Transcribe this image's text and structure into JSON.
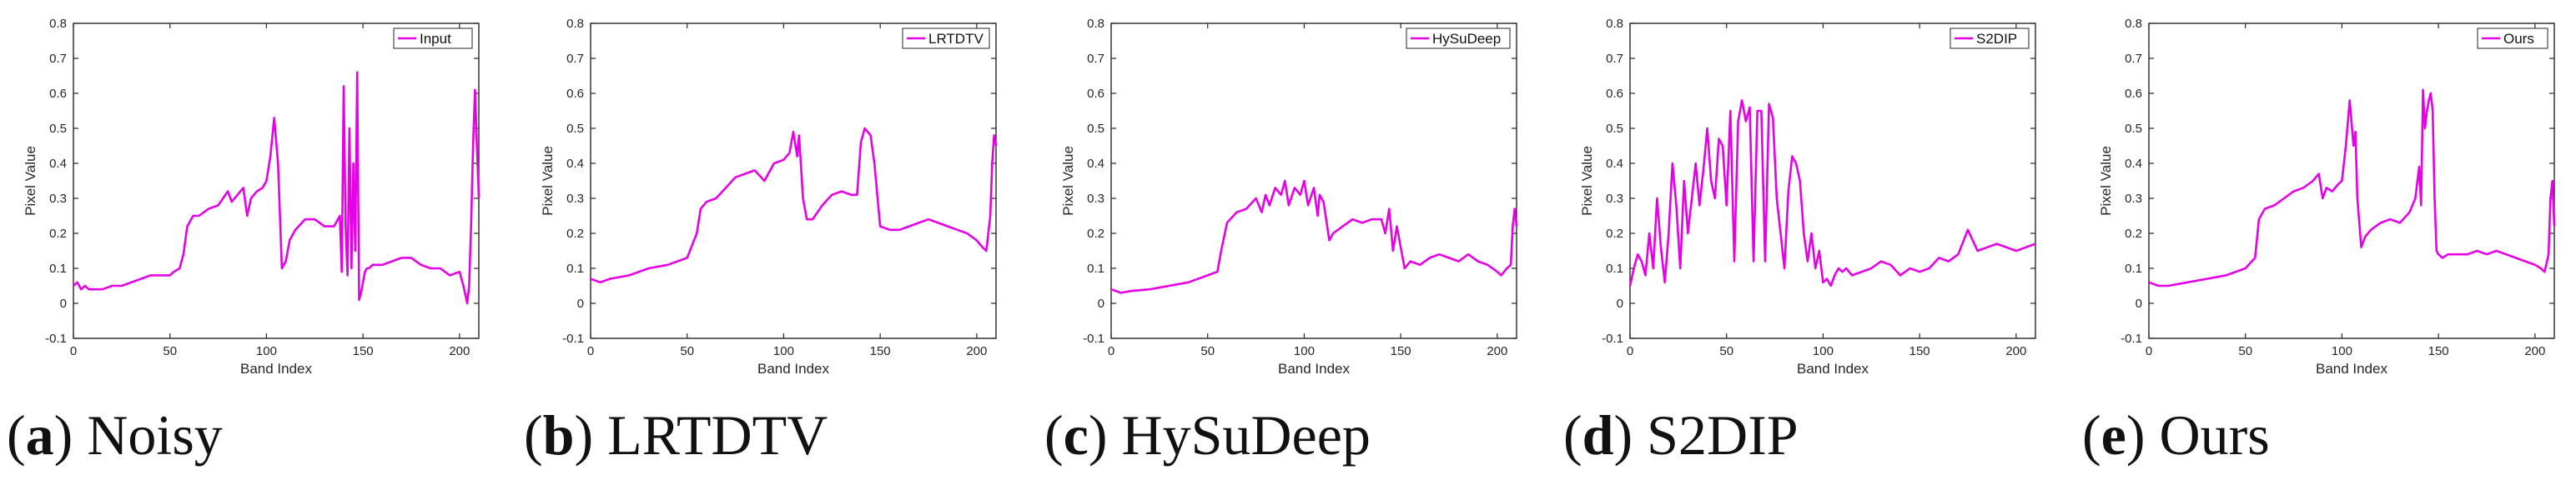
{
  "panels": [
    {
      "letter": "a",
      "name": "Noisy",
      "chart_data": {
        "type": "line",
        "xlabel": "Band Index",
        "ylabel": "Pixel Value",
        "xlim": [
          0,
          210
        ],
        "ylim": [
          -0.1,
          0.8
        ],
        "xticks": [
          "0",
          "50",
          "100",
          "150",
          "200"
        ],
        "yticks": [
          "-0.1",
          "0",
          "0.1",
          "0.2",
          "0.3",
          "0.4",
          "0.5",
          "0.6",
          "0.7",
          "0.8"
        ],
        "legend": "top-right",
        "color": "#e600e6",
        "series": [
          {
            "name": "Input",
            "x": [
              0,
              2,
              4,
              6,
              8,
              10,
              15,
              20,
              25,
              30,
              35,
              40,
              45,
              50,
              52,
              55,
              57,
              59,
              62,
              65,
              70,
              75,
              80,
              82,
              85,
              88,
              90,
              92,
              95,
              98,
              100,
              102,
              104,
              106,
              108,
              110,
              112,
              115,
              120,
              125,
              130,
              135,
              138,
              139,
              140,
              141,
              142,
              143,
              144,
              145,
              146,
              147,
              148,
              149,
              150,
              151,
              152,
              153,
              155,
              160,
              165,
              170,
              175,
              180,
              185,
              190,
              195,
              200,
              202,
              204,
              205,
              206,
              207,
              208,
              209,
              210
            ],
            "y": [
              0.05,
              0.06,
              0.04,
              0.05,
              0.04,
              0.04,
              0.04,
              0.05,
              0.05,
              0.06,
              0.07,
              0.08,
              0.08,
              0.08,
              0.09,
              0.1,
              0.14,
              0.22,
              0.25,
              0.25,
              0.27,
              0.28,
              0.32,
              0.29,
              0.31,
              0.33,
              0.25,
              0.3,
              0.32,
              0.33,
              0.35,
              0.42,
              0.53,
              0.4,
              0.1,
              0.12,
              0.18,
              0.21,
              0.24,
              0.24,
              0.22,
              0.22,
              0.25,
              0.09,
              0.62,
              0.22,
              0.08,
              0.5,
              0.1,
              0.4,
              0.15,
              0.66,
              0.01,
              0.03,
              0.06,
              0.09,
              0.1,
              0.1,
              0.11,
              0.11,
              0.12,
              0.13,
              0.13,
              0.11,
              0.1,
              0.1,
              0.08,
              0.09,
              0.05,
              0.0,
              0.05,
              0.22,
              0.45,
              0.61,
              0.45,
              0.3
            ]
          }
        ]
      }
    },
    {
      "letter": "b",
      "name": "LRTDTV",
      "chart_data": {
        "type": "line",
        "xlabel": "Band Index",
        "ylabel": "Pixel Value",
        "xlim": [
          0,
          210
        ],
        "ylim": [
          -0.1,
          0.8
        ],
        "xticks": [
          "0",
          "50",
          "100",
          "150",
          "200"
        ],
        "yticks": [
          "-0.1",
          "0",
          "0.1",
          "0.2",
          "0.3",
          "0.4",
          "0.5",
          "0.6",
          "0.7",
          "0.8"
        ],
        "legend": "top-right",
        "color": "#e600e6",
        "series": [
          {
            "name": "LRTDTV",
            "x": [
              0,
              5,
              10,
              20,
              30,
              40,
              50,
              55,
              57,
              60,
              65,
              70,
              75,
              80,
              85,
              90,
              95,
              100,
              103,
              105,
              107,
              108,
              110,
              112,
              115,
              120,
              125,
              130,
              135,
              138,
              140,
              142,
              145,
              147,
              150,
              155,
              160,
              165,
              170,
              175,
              180,
              185,
              190,
              195,
              200,
              203,
              205,
              207,
              208,
              209,
              210
            ],
            "y": [
              0.07,
              0.06,
              0.07,
              0.08,
              0.1,
              0.11,
              0.13,
              0.2,
              0.27,
              0.29,
              0.3,
              0.33,
              0.36,
              0.37,
              0.38,
              0.35,
              0.4,
              0.41,
              0.43,
              0.49,
              0.42,
              0.48,
              0.3,
              0.24,
              0.24,
              0.28,
              0.31,
              0.32,
              0.31,
              0.31,
              0.46,
              0.5,
              0.48,
              0.4,
              0.22,
              0.21,
              0.21,
              0.22,
              0.23,
              0.24,
              0.23,
              0.22,
              0.21,
              0.2,
              0.18,
              0.16,
              0.15,
              0.25,
              0.4,
              0.48,
              0.45
            ]
          }
        ]
      }
    },
    {
      "letter": "c",
      "name": "HySuDeep",
      "chart_data": {
        "type": "line",
        "xlabel": "Band Index",
        "ylabel": "Pixel Value",
        "xlim": [
          0,
          210
        ],
        "ylim": [
          -0.1,
          0.8
        ],
        "xticks": [
          "0",
          "50",
          "100",
          "150",
          "200"
        ],
        "yticks": [
          "-0.1",
          "0",
          "0.1",
          "0.2",
          "0.3",
          "0.4",
          "0.5",
          "0.6",
          "0.7",
          "0.8"
        ],
        "legend": "top-right",
        "color": "#e600e6",
        "series": [
          {
            "name": "HySuDeep",
            "x": [
              0,
              5,
              10,
              20,
              30,
              40,
              50,
              55,
              57,
              60,
              65,
              70,
              75,
              78,
              80,
              82,
              85,
              88,
              90,
              92,
              95,
              98,
              100,
              102,
              105,
              107,
              108,
              110,
              113,
              115,
              120,
              125,
              130,
              135,
              140,
              142,
              144,
              146,
              148,
              150,
              152,
              155,
              160,
              165,
              170,
              175,
              180,
              185,
              190,
              195,
              200,
              202,
              205,
              207,
              208,
              209,
              210
            ],
            "y": [
              0.04,
              0.03,
              0.035,
              0.04,
              0.05,
              0.06,
              0.08,
              0.09,
              0.15,
              0.23,
              0.26,
              0.27,
              0.3,
              0.26,
              0.31,
              0.28,
              0.33,
              0.31,
              0.35,
              0.28,
              0.33,
              0.31,
              0.35,
              0.28,
              0.33,
              0.25,
              0.31,
              0.29,
              0.18,
              0.2,
              0.22,
              0.24,
              0.23,
              0.24,
              0.24,
              0.2,
              0.27,
              0.15,
              0.22,
              0.16,
              0.1,
              0.12,
              0.11,
              0.13,
              0.14,
              0.13,
              0.12,
              0.14,
              0.12,
              0.11,
              0.09,
              0.08,
              0.1,
              0.11,
              0.22,
              0.27,
              0.22
            ]
          }
        ]
      }
    },
    {
      "letter": "d",
      "name": "S2DIP",
      "chart_data": {
        "type": "line",
        "xlabel": "Band Index",
        "ylabel": "Pixel Value",
        "xlim": [
          0,
          210
        ],
        "ylim": [
          -0.1,
          0.8
        ],
        "xticks": [
          "0",
          "50",
          "100",
          "150",
          "200"
        ],
        "yticks": [
          "-0.1",
          "0",
          "0.1",
          "0.2",
          "0.3",
          "0.4",
          "0.5",
          "0.6",
          "0.7",
          "0.8"
        ],
        "legend": "top-right",
        "color": "#e600e6",
        "series": [
          {
            "name": "S2DIP",
            "x": [
              0,
              2,
              4,
              6,
              8,
              10,
              12,
              14,
              16,
              18,
              20,
              22,
              24,
              26,
              28,
              30,
              32,
              34,
              36,
              38,
              40,
              42,
              44,
              46,
              48,
              50,
              52,
              54,
              56,
              58,
              60,
              62,
              64,
              66,
              68,
              70,
              72,
              74,
              76,
              78,
              80,
              82,
              84,
              86,
              88,
              90,
              92,
              94,
              96,
              98,
              100,
              102,
              104,
              106,
              108,
              110,
              112,
              115,
              120,
              125,
              130,
              135,
              140,
              145,
              150,
              155,
              160,
              165,
              170,
              175,
              180,
              185,
              190,
              195,
              200,
              205,
              210
            ],
            "y": [
              0.05,
              0.1,
              0.14,
              0.12,
              0.08,
              0.2,
              0.1,
              0.3,
              0.16,
              0.06,
              0.2,
              0.4,
              0.28,
              0.1,
              0.35,
              0.2,
              0.3,
              0.4,
              0.28,
              0.38,
              0.5,
              0.35,
              0.3,
              0.47,
              0.45,
              0.28,
              0.55,
              0.12,
              0.52,
              0.58,
              0.52,
              0.56,
              0.12,
              0.55,
              0.55,
              0.12,
              0.57,
              0.53,
              0.3,
              0.2,
              0.1,
              0.32,
              0.42,
              0.4,
              0.35,
              0.2,
              0.12,
              0.2,
              0.1,
              0.15,
              0.06,
              0.07,
              0.05,
              0.08,
              0.1,
              0.09,
              0.1,
              0.08,
              0.09,
              0.1,
              0.12,
              0.11,
              0.08,
              0.1,
              0.09,
              0.1,
              0.13,
              0.12,
              0.14,
              0.21,
              0.15,
              0.16,
              0.17,
              0.16,
              0.15,
              0.16,
              0.17
            ]
          }
        ]
      }
    },
    {
      "letter": "e",
      "name": "Ours",
      "chart_data": {
        "type": "line",
        "xlabel": "Band Index",
        "ylabel": "Pixel Value",
        "xlim": [
          0,
          210
        ],
        "ylim": [
          -0.1,
          0.8
        ],
        "xticks": [
          "0",
          "50",
          "100",
          "150",
          "200"
        ],
        "yticks": [
          "-0.1",
          "0",
          "0.1",
          "0.2",
          "0.3",
          "0.4",
          "0.5",
          "0.6",
          "0.7",
          "0.8"
        ],
        "legend": "top-right",
        "color": "#e600e6",
        "series": [
          {
            "name": "Ours",
            "x": [
              0,
              5,
              10,
              20,
              30,
              40,
              50,
              55,
              57,
              60,
              65,
              70,
              75,
              80,
              85,
              88,
              90,
              92,
              95,
              98,
              100,
              102,
              104,
              106,
              107,
              108,
              110,
              112,
              115,
              120,
              125,
              130,
              135,
              138,
              140,
              141,
              142,
              143,
              144,
              145,
              146,
              147,
              148,
              149,
              150,
              152,
              155,
              160,
              165,
              170,
              175,
              180,
              185,
              190,
              195,
              200,
              203,
              205,
              207,
              208,
              209,
              210
            ],
            "y": [
              0.06,
              0.05,
              0.05,
              0.06,
              0.07,
              0.08,
              0.1,
              0.13,
              0.24,
              0.27,
              0.28,
              0.3,
              0.32,
              0.33,
              0.35,
              0.37,
              0.3,
              0.33,
              0.32,
              0.34,
              0.35,
              0.45,
              0.58,
              0.45,
              0.49,
              0.3,
              0.16,
              0.19,
              0.21,
              0.23,
              0.24,
              0.23,
              0.26,
              0.3,
              0.39,
              0.28,
              0.61,
              0.5,
              0.55,
              0.58,
              0.6,
              0.55,
              0.3,
              0.15,
              0.14,
              0.13,
              0.14,
              0.14,
              0.14,
              0.15,
              0.14,
              0.15,
              0.14,
              0.13,
              0.12,
              0.11,
              0.1,
              0.09,
              0.14,
              0.3,
              0.35,
              0.22
            ]
          }
        ]
      }
    }
  ]
}
